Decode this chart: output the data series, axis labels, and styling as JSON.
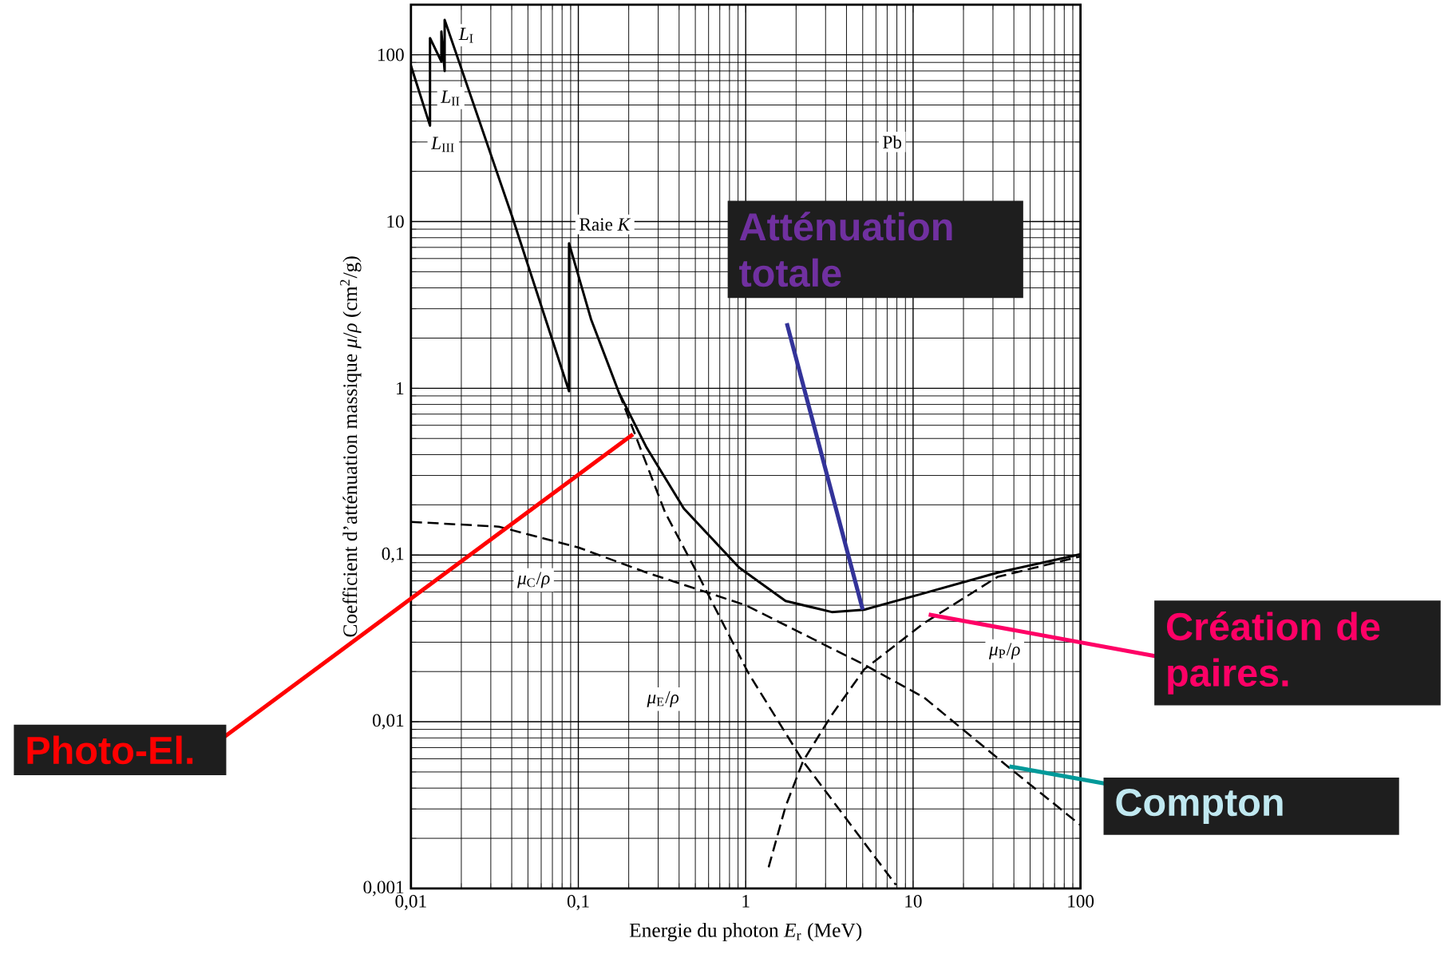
{
  "chart_data": {
    "type": "line",
    "xlabel": "Energie du photon *E*$_{r}$ (MeV)",
    "ylabel": "Coefficient d’atténuation massique *μ*/*ρ* (cm$^{2}$/g)",
    "log": "xy",
    "grid": true,
    "xlim": [
      0.01,
      100
    ],
    "ylim": [
      0.001,
      200
    ],
    "xticks": [
      {
        "value": 0.01,
        "label": "0,01"
      },
      {
        "value": 0.1,
        "label": "0,1"
      },
      1,
      10,
      100
    ],
    "yticks": [
      {
        "value": 0.001,
        "label": "0,001"
      },
      {
        "value": 0.01,
        "label": "0,01"
      },
      {
        "value": 0.1,
        "label": "0,1"
      },
      1,
      10,
      100
    ],
    "series": [
      {
        "color": "#000000",
        "line_style": "solid",
        "x": [
          0.01,
          0.013,
          0.013,
          0.0152,
          0.0152,
          0.0159,
          0.0159,
          0.0405,
          0.088,
          0.088,
          0.119,
          0.175,
          0.256,
          0.427,
          0.914,
          1.73,
          3.27,
          5.1,
          11.6,
          32,
          100
        ],
        "values": [
          86,
          37.6,
          126,
          91,
          138,
          80,
          162,
          10.5,
          0.96,
          7.4,
          2.6,
          0.94,
          0.44,
          0.19,
          0.084,
          0.053,
          0.0455,
          0.047,
          0.059,
          0.0785,
          0.101
        ]
      },
      {
        "color": "#000000",
        "line_style": "dashed",
        "x": [
          0.175,
          0.33,
          0.52,
          1.04,
          2.2,
          7.9
        ],
        "values": [
          0.94,
          0.18,
          0.076,
          0.0195,
          0.0058,
          0.00105
        ]
      },
      {
        "color": "#000000",
        "line_style": "dashed",
        "x": [
          0.01,
          0.0335,
          0.1,
          0.256,
          1,
          5.1,
          11.6,
          36.7,
          100
        ],
        "values": [
          0.158,
          0.148,
          0.111,
          0.0785,
          0.05,
          0.022,
          0.014,
          0.0054,
          0.0024
        ]
      },
      {
        "color": "#000000",
        "line_style": "dashed",
        "x": [
          1.37,
          1.73,
          2.2,
          3.27,
          5.1,
          11.6,
          32,
          100
        ],
        "values": [
          0.00134,
          0.0031,
          0.0058,
          0.011,
          0.0206,
          0.039,
          0.074,
          0.098
        ]
      }
    ],
    "annotations": [
      {
        "text": "*L*$_{I}$",
        "x": 0.0215,
        "y": 131
      },
      {
        "text": "*L*$_{II}$",
        "x": 0.0173,
        "y": 55
      },
      {
        "text": "*L*$_{III}$",
        "x": 0.0156,
        "y": 29
      },
      "Raie *K*",
      {
        "text": "Pb",
        "x": 7.5,
        "y": 30
      },
      "*μ*$_{C}$/*ρ*",
      "*μ*$_{E}$/*ρ*",
      "*μ*$_{P}$/*ρ*",
      {
        "text": "Atténuation totale",
        "x": 5.0,
        "y": 0.047
      },
      {
        "text": "Photo-El.",
        "x": 0.212,
        "y": 0.53
      },
      {
        "text": "Création de paires.",
        "x": 12.4,
        "y": 0.044
      },
      {
        "text": "Compton",
        "x": 37.6,
        "y": 0.0054
      }
    ]
  }
}
